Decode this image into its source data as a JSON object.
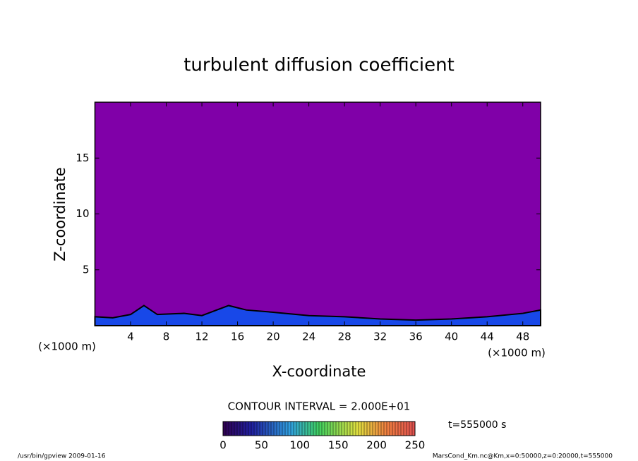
{
  "chart_data": {
    "type": "contour",
    "title": "turbulent diffusion coefficient",
    "xlabel": "X-coordinate",
    "ylabel": "Z-coordinate",
    "x_unit": "(×1000 m)",
    "y_unit": "(×1000 m)",
    "xlim": [
      0,
      50
    ],
    "ylim": [
      0,
      20
    ],
    "xticks": [
      4,
      8,
      12,
      16,
      20,
      24,
      28,
      32,
      36,
      40,
      44,
      48
    ],
    "yticks": [
      5,
      10,
      15
    ],
    "background_color": "#8000a8",
    "layer": {
      "color": "#1848e8",
      "x": [
        0,
        2,
        4,
        5.5,
        7,
        10,
        12,
        15,
        17,
        20,
        24,
        28,
        32,
        36,
        40,
        44,
        48,
        50
      ],
      "values": [
        0.8,
        0.7,
        1.0,
        1.8,
        1.0,
        1.1,
        0.9,
        1.8,
        1.4,
        1.2,
        0.9,
        0.8,
        0.6,
        0.5,
        0.6,
        0.8,
        1.1,
        1.4
      ]
    },
    "colorbar": {
      "title": "CONTOUR INTERVAL = 2.000E+01",
      "lim": [
        0,
        250
      ],
      "ticks": [
        0,
        50,
        100,
        150,
        200,
        250
      ]
    },
    "time_label": "t=555000 s",
    "footer_left": "/usr/bin/gpview  2009-01-16",
    "footer_right": "MarsCond_Km.nc@Km,x=0:50000,z=0:20000,t=555000"
  }
}
